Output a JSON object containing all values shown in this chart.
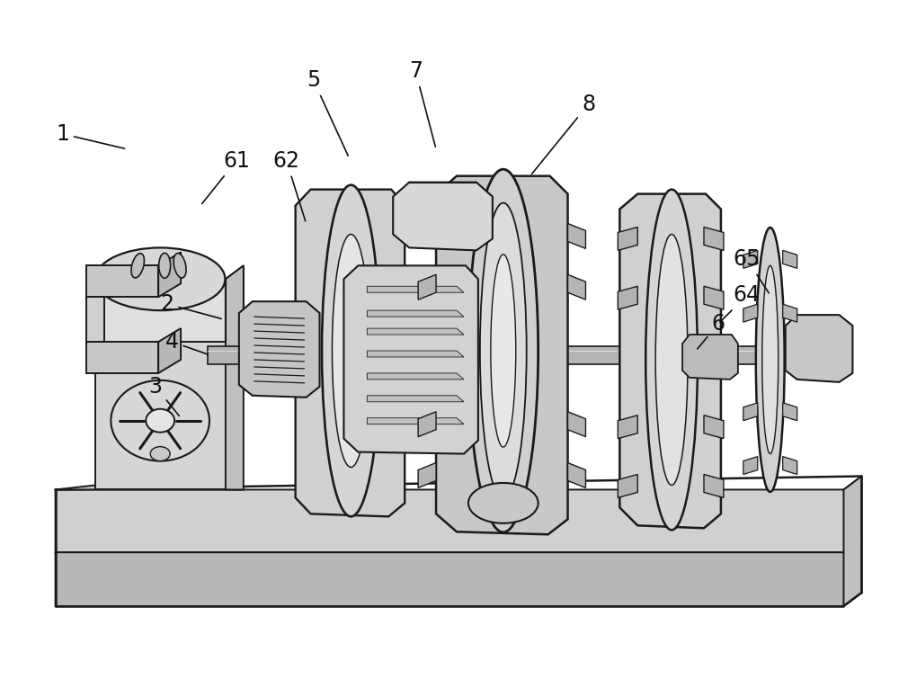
{
  "bg_color": "#ffffff",
  "line_color": "#1a1a1a",
  "figsize": [
    10.0,
    7.75
  ],
  "dpi": 100,
  "annotations": [
    {
      "label": "1",
      "txt": [
        68,
        148
      ],
      "arrow": [
        140,
        165
      ]
    },
    {
      "label": "2",
      "txt": [
        185,
        338
      ],
      "arrow": [
        248,
        355
      ]
    },
    {
      "label": "3",
      "txt": [
        172,
        430
      ],
      "arrow": [
        200,
        465
      ]
    },
    {
      "label": "4",
      "txt": [
        190,
        380
      ],
      "arrow": [
        233,
        395
      ]
    },
    {
      "label": "5",
      "txt": [
        348,
        88
      ],
      "arrow": [
        388,
        175
      ]
    },
    {
      "label": "6",
      "txt": [
        800,
        360
      ],
      "arrow": [
        775,
        390
      ]
    },
    {
      "label": "7",
      "txt": [
        462,
        78
      ],
      "arrow": [
        485,
        165
      ]
    },
    {
      "label": "8",
      "txt": [
        655,
        115
      ],
      "arrow": [
        590,
        195
      ]
    },
    {
      "label": "61",
      "txt": [
        262,
        178
      ],
      "arrow": [
        222,
        228
      ]
    },
    {
      "label": "62",
      "txt": [
        318,
        178
      ],
      "arrow": [
        340,
        248
      ]
    },
    {
      "label": "64",
      "txt": [
        832,
        328
      ],
      "arrow": [
        800,
        360
      ]
    },
    {
      "label": "65",
      "txt": [
        832,
        288
      ],
      "arrow": [
        858,
        328
      ]
    }
  ]
}
